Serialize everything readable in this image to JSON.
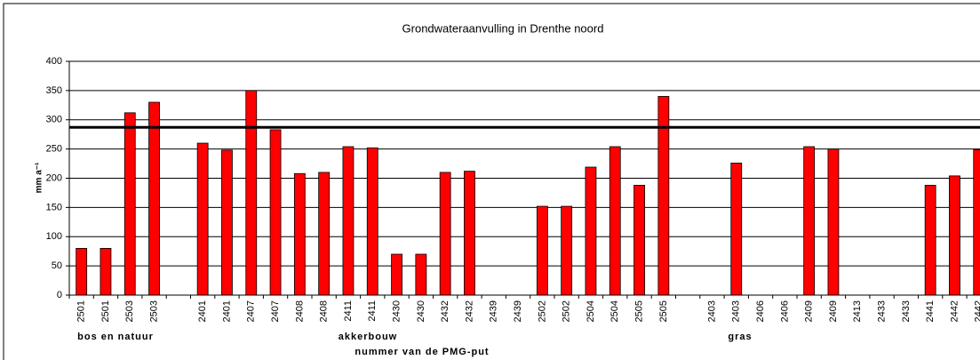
{
  "chart_data": {
    "type": "bar",
    "title": "Grondwateraanvulling in Drenthe noord",
    "y_label": "mm a⁻¹",
    "x_label": "nummer van de PMG-put",
    "categories": [
      "2501",
      "2501",
      "2503",
      "2503",
      null,
      "2401",
      "2401",
      "2407",
      "2407",
      "2408",
      "2408",
      "2411",
      "2411",
      "2430",
      "2430",
      "2432",
      "2432",
      "2439",
      "2439",
      "2502",
      "2502",
      "2504",
      "2504",
      "2505",
      "2505",
      null,
      "2403",
      "2403",
      "2406",
      "2406",
      "2409",
      "2409",
      "2413",
      "2433",
      "2433",
      "2441",
      "2442",
      "2442"
    ],
    "values": [
      80,
      80,
      312,
      330,
      null,
      260,
      248,
      350,
      283,
      208,
      210,
      254,
      252,
      70,
      70,
      210,
      212,
      null,
      null,
      152,
      152,
      219,
      254,
      188,
      340,
      null,
      null,
      226,
      null,
      null,
      254,
      250,
      null,
      null,
      null,
      188,
      204,
      249
    ],
    "color": "#ff0000",
    "groups": [
      "bos en natuur",
      "akkerbouw",
      "gras"
    ],
    "reference_line": 287,
    "ylim": [
      0,
      400
    ],
    "yticks": [
      0,
      50,
      100,
      150,
      200,
      250,
      300,
      350,
      400
    ],
    "grid": true
  }
}
